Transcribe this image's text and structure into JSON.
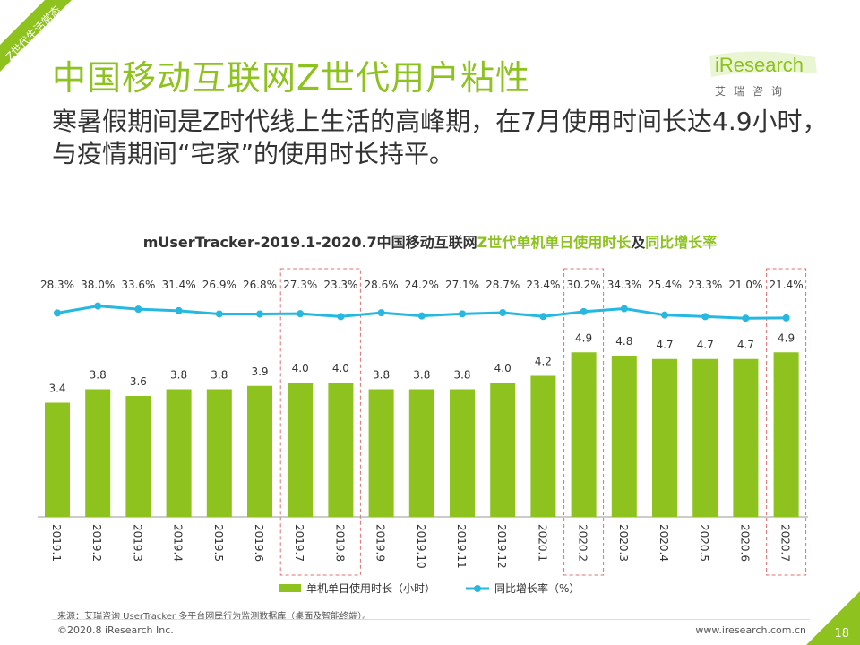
{
  "header": {
    "corner_tag": "Z世代生活常态",
    "title": "中国移动互联网Z世代用户粘性",
    "subtitle": "寒暑假期间是Z时代线上生活的高峰期，在7月使用时间长达4.9小时，与疫情期间“宅家”的使用时长持平。"
  },
  "logo": {
    "name": "iResearch",
    "sub": "艾瑞咨询"
  },
  "colors": {
    "accent": "#8dc21f",
    "line": "#26b8e0",
    "highlight": "#e07070"
  },
  "chart_data": {
    "type": "bar",
    "title_parts": {
      "prefix": "mUserTracker-2019.1-2020.7中国移动互联网",
      "green1": "Z世代单机单日使用时长",
      "mid": "及",
      "green2": "同比增长率"
    },
    "categories": [
      "2019.1",
      "2019.2",
      "2019.3",
      "2019.4",
      "2019.5",
      "2019.6",
      "2019.7",
      "2019.8",
      "2019.9",
      "2019.10",
      "2019.11",
      "2019.12",
      "2020.1",
      "2020.2",
      "2020.3",
      "2020.4",
      "2020.5",
      "2020.6",
      "2020.7"
    ],
    "series": [
      {
        "name": "单机单日使用时长（小时）",
        "type": "bar",
        "values": [
          3.4,
          3.8,
          3.6,
          3.8,
          3.8,
          3.9,
          4.0,
          4.0,
          3.8,
          3.8,
          3.8,
          4.0,
          4.2,
          4.9,
          4.8,
          4.7,
          4.7,
          4.7,
          4.9
        ],
        "labels": [
          "3.4",
          "3.8",
          "3.6",
          "3.8",
          "3.8",
          "3.9",
          "4.0",
          "4.0",
          "3.8",
          "3.8",
          "3.8",
          "4.0",
          "4.2",
          "4.9",
          "4.8",
          "4.7",
          "4.7",
          "4.7",
          "4.9"
        ]
      },
      {
        "name": "同比增长率（%）",
        "type": "line",
        "values": [
          28.3,
          38.0,
          33.6,
          31.4,
          26.9,
          26.8,
          27.3,
          23.3,
          28.6,
          24.2,
          27.1,
          28.7,
          23.4,
          30.2,
          34.3,
          25.4,
          23.3,
          21.0,
          21.4
        ],
        "labels": [
          "28.3%",
          "38.0%",
          "33.6%",
          "31.4%",
          "26.9%",
          "26.8%",
          "27.3%",
          "23.3%",
          "28.6%",
          "24.2%",
          "27.1%",
          "28.7%",
          "23.4%",
          "30.2%",
          "34.3%",
          "25.4%",
          "23.3%",
          "21.0%",
          "21.4%"
        ]
      }
    ],
    "highlighted_categories": [
      "2019.7",
      "2019.8",
      "2020.2",
      "2020.7"
    ],
    "legend_position": "bottom"
  },
  "footer": {
    "source": "来源：艾瑞咨询 UserTracker 多平台网民行为监测数据库（桌面及智能终端）。",
    "copyright": "©2020.8 iResearch Inc.",
    "website": "www.iresearch.com.cn",
    "page": "18"
  }
}
